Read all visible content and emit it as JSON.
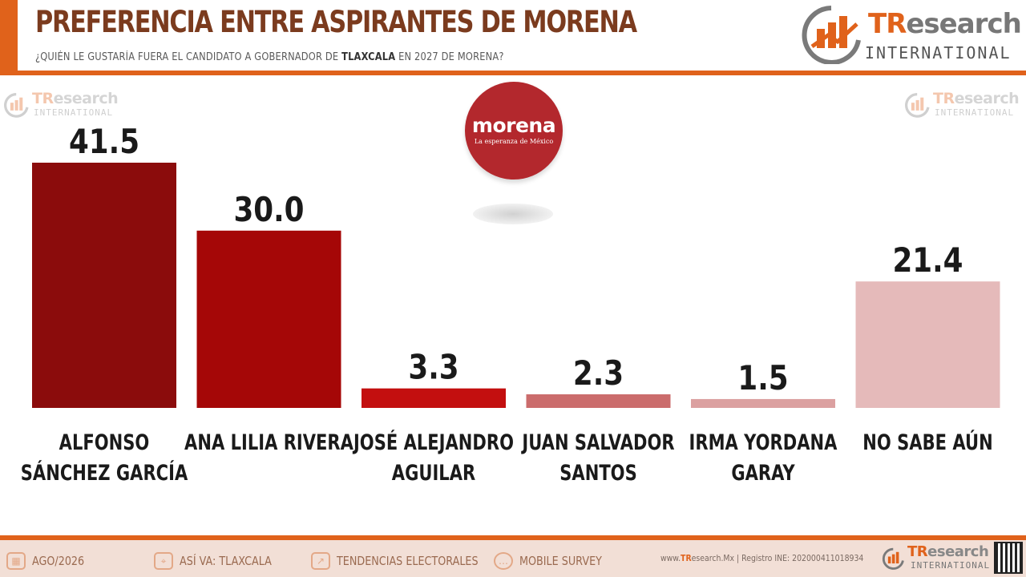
{
  "header": {
    "title": "PREFERENCIA ENTRE ASPIRANTES DE MORENA",
    "subtitle_pre": "¿QUIÉN LE GUSTARÍA FUERA EL CANDIDATO A GOBERNADOR DE ",
    "subtitle_bold": "TLAXCALA",
    "subtitle_post": " EN 2027 DE MORENA?"
  },
  "brand": {
    "name_part1": "TR",
    "name_part2": "esearch",
    "sub": "INTERNATIONAL"
  },
  "morena_logo": {
    "name": "morena",
    "tagline": "La esperanza de México"
  },
  "chart_data": {
    "type": "bar",
    "title": "PREFERENCIA ENTRE ASPIRANTES DE MORENA",
    "categories": [
      [
        "ALFONSO",
        "SÁNCHEZ GARCÍA"
      ],
      [
        "ANA LILIA RIVERA"
      ],
      [
        "JOSÉ ALEJANDRO",
        "AGUILAR"
      ],
      [
        "JUAN SALVADOR",
        "SANTOS"
      ],
      [
        "IRMA YORDANA",
        "GARAY"
      ],
      [
        "NO SABE AÚN"
      ]
    ],
    "values": [
      41.5,
      30.0,
      3.3,
      2.3,
      1.5,
      21.4
    ],
    "value_labels": [
      "41.5",
      "30.0",
      "3.3",
      "2.3",
      "1.5",
      "21.4"
    ],
    "colors": [
      "#8b0c0c",
      "#a50707",
      "#c30f0f",
      "#cb6c6c",
      "#dba0a0",
      "#e5baba"
    ],
    "ylim": [
      0,
      41.5
    ],
    "grid": false,
    "legend": "none"
  },
  "footer": {
    "items": [
      {
        "icon": "calendar-icon",
        "label": "AGO/2026"
      },
      {
        "icon": "map-pin-icon",
        "label": "ASÍ VA: TLAXCALA"
      },
      {
        "icon": "trend-icon",
        "label": "TENDENCIAS ELECTORALES"
      },
      {
        "icon": "chat-icon",
        "label": "MOBILE SURVEY"
      }
    ],
    "registry_pre": "www.",
    "registry_brand": "TR",
    "registry_post": "esearch.Mx | Registro INE: 202000411018934"
  }
}
